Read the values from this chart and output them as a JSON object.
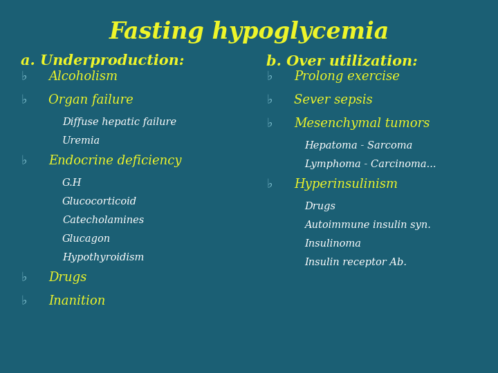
{
  "title": "Fasting hypoglycemia",
  "bg_color": "#1b5f74",
  "title_color": "#eef52a",
  "heading_color": "#eef52a",
  "bullet_color": "#7abccc",
  "main_text_color": "#eef52a",
  "sub_text_color": "#ffffff",
  "title_fontsize": 24,
  "heading_fontsize": 15,
  "main_fontsize": 13,
  "sub_fontsize": 10.5,
  "left_heading": "a. Underproduction:",
  "right_heading": "b. Over utilization:",
  "left_items": [
    {
      "type": "main",
      "text": "Alcoholism"
    },
    {
      "type": "main",
      "text": "Organ failure"
    },
    {
      "type": "sub",
      "text": "Diffuse hepatic failure"
    },
    {
      "type": "sub",
      "text": "Uremia"
    },
    {
      "type": "main",
      "text": "Endocrine deficiency"
    },
    {
      "type": "sub",
      "text": "G.H"
    },
    {
      "type": "sub",
      "text": "Glucocorticoid"
    },
    {
      "type": "sub",
      "text": "Catecholamines"
    },
    {
      "type": "sub",
      "text": "Glucagon"
    },
    {
      "type": "sub",
      "text": "Hypothyroidism"
    },
    {
      "type": "main",
      "text": "Drugs"
    },
    {
      "type": "main",
      "text": "Inanition"
    }
  ],
  "right_items": [
    {
      "type": "main",
      "text": "Prolong exercise"
    },
    {
      "type": "main",
      "text": "Sever sepsis"
    },
    {
      "type": "main",
      "text": "Mesenchymal tumors"
    },
    {
      "type": "sub",
      "text": "Hepatoma - Sarcoma"
    },
    {
      "type": "sub",
      "text": "Lymphoma - Carcinoma..."
    },
    {
      "type": "main",
      "text": "Hyperinsulinism"
    },
    {
      "type": "sub",
      "text": "Drugs"
    },
    {
      "type": "sub",
      "text": "Autoimmune insulin syn."
    },
    {
      "type": "sub",
      "text": "Insulinoma"
    },
    {
      "type": "sub",
      "text": "Insulin receptor Ab."
    }
  ]
}
